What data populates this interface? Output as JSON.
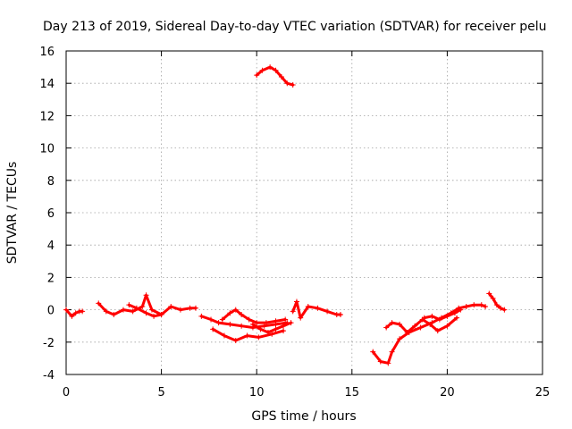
{
  "chart_data": {
    "type": "scatter",
    "title": "Day 213 of 2019, Sidereal Day-to-day VTEC variation (SDTVAR) for receiver pelu",
    "xlabel": "GPS time / hours",
    "ylabel": "SDTVAR / TECUs",
    "xlim": [
      0,
      25
    ],
    "ylim": [
      -4,
      16
    ],
    "xticks": [
      0,
      5,
      10,
      15,
      20,
      25
    ],
    "yticks": [
      -4,
      -2,
      0,
      2,
      4,
      6,
      8,
      10,
      12,
      14,
      16
    ],
    "grid": true,
    "color": "#ff0000",
    "series": [
      {
        "name": "s1",
        "x": [
          0.0,
          0.3,
          0.5,
          0.7,
          0.85
        ],
        "y": [
          0.0,
          -0.4,
          -0.2,
          -0.1,
          -0.1
        ]
      },
      {
        "name": "s2",
        "x": [
          1.7,
          2.1,
          2.5,
          3.0,
          3.5,
          4.0,
          4.2,
          4.5,
          5.0,
          5.5,
          6.0,
          6.5,
          6.8
        ],
        "y": [
          0.4,
          -0.1,
          -0.3,
          0.0,
          -0.1,
          0.2,
          0.9,
          0.0,
          -0.3,
          0.2,
          0.0,
          0.1,
          0.1
        ]
      },
      {
        "name": "s3",
        "x": [
          3.3,
          3.7,
          4.2,
          4.6,
          5.0
        ],
        "y": [
          0.3,
          0.1,
          -0.2,
          -0.4,
          -0.3
        ]
      },
      {
        "name": "s4",
        "x": [
          7.1,
          7.6,
          8.0,
          8.6,
          9.2,
          9.8,
          10.4,
          11.0,
          11.6
        ],
        "y": [
          -0.4,
          -0.6,
          -0.8,
          -0.9,
          -1.0,
          -1.1,
          -1.0,
          -0.9,
          -0.8
        ]
      },
      {
        "name": "s5",
        "x": [
          7.7,
          8.3,
          8.9,
          9.5,
          10.1,
          10.8,
          11.4
        ],
        "y": [
          -1.2,
          -1.6,
          -1.9,
          -1.6,
          -1.7,
          -1.5,
          -1.3
        ]
      },
      {
        "name": "s6",
        "x": [
          8.2,
          8.6,
          8.9,
          9.2,
          9.6,
          10.0,
          10.5,
          11.0,
          11.5
        ],
        "y": [
          -0.6,
          -0.2,
          0.0,
          -0.3,
          -0.6,
          -0.8,
          -0.8,
          -0.7,
          -0.6
        ]
      },
      {
        "name": "s7",
        "x": [
          9.8,
          10.2,
          10.6,
          11.0,
          11.4,
          11.8
        ],
        "y": [
          -0.9,
          -1.2,
          -1.4,
          -1.2,
          -1.0,
          -0.8
        ]
      },
      {
        "name": "s8",
        "x": [
          10.0,
          10.3,
          10.7,
          11.0,
          11.3,
          11.6,
          11.9
        ],
        "y": [
          14.5,
          14.8,
          15.0,
          14.8,
          14.4,
          14.0,
          13.9
        ]
      },
      {
        "name": "s9",
        "x": [
          11.9,
          12.1,
          12.3,
          12.7,
          13.2,
          13.7,
          14.2,
          14.4
        ],
        "y": [
          -0.1,
          0.5,
          -0.5,
          0.2,
          0.1,
          -0.1,
          -0.3,
          -0.3
        ]
      },
      {
        "name": "s10",
        "x": [
          16.1,
          16.5,
          16.9,
          17.1,
          17.5,
          18.0,
          18.6,
          19.2,
          19.7,
          20.2,
          20.6,
          21.0,
          21.4,
          21.8,
          22.0
        ],
        "y": [
          -2.6,
          -3.2,
          -3.3,
          -2.6,
          -1.8,
          -1.4,
          -1.1,
          -0.8,
          -0.5,
          -0.2,
          0.1,
          0.2,
          0.3,
          0.3,
          0.2
        ]
      },
      {
        "name": "s11",
        "x": [
          16.8,
          17.1,
          17.5,
          17.9,
          18.3,
          18.7,
          19.1,
          19.5,
          20.0,
          20.5
        ],
        "y": [
          -1.1,
          -0.8,
          -0.9,
          -1.4,
          -1.0,
          -0.6,
          -0.9,
          -1.3,
          -1.0,
          -0.5
        ]
      },
      {
        "name": "s12",
        "x": [
          18.8,
          19.2,
          19.6,
          20.0,
          20.4,
          20.7
        ],
        "y": [
          -0.5,
          -0.4,
          -0.6,
          -0.4,
          -0.2,
          0.0
        ]
      },
      {
        "name": "s13",
        "x": [
          22.2,
          22.4,
          22.6,
          22.8,
          23.0
        ],
        "y": [
          1.0,
          0.7,
          0.3,
          0.1,
          0.0
        ]
      }
    ]
  }
}
